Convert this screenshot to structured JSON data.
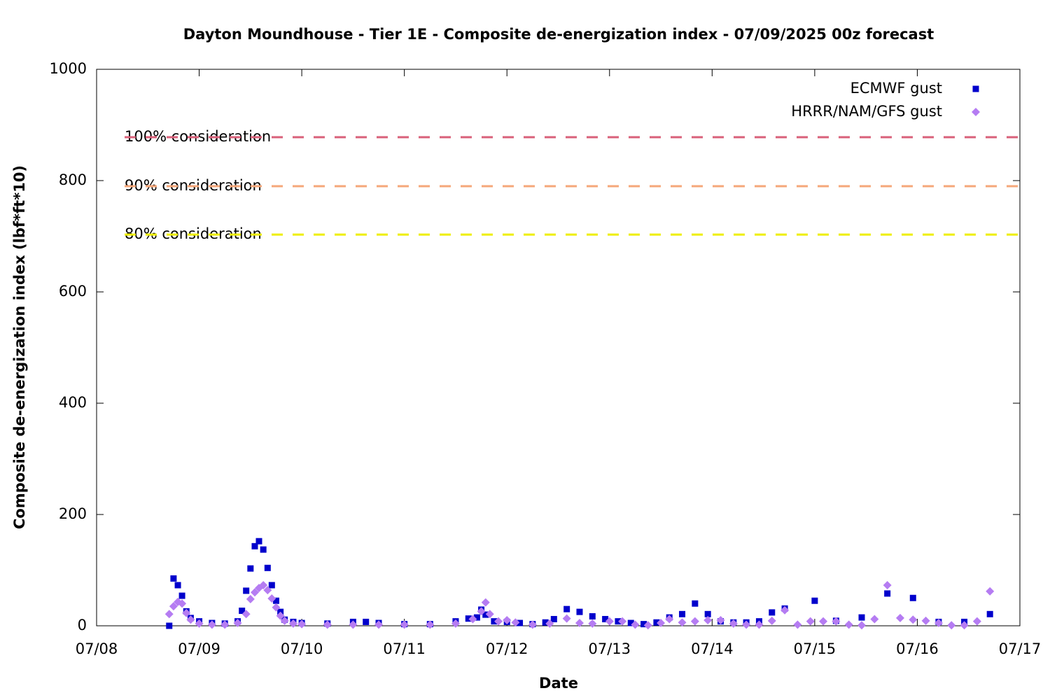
{
  "chart_data": {
    "type": "scatter",
    "title": "Dayton Moundhouse - Tier 1E - Composite de-energization index - 07/09/2025 00z forecast",
    "xlabel": "Date",
    "ylabel": "Composite de-energization index (lbf*ft*10)",
    "xlim": [
      8,
      17
    ],
    "xticks": [
      {
        "value": 8,
        "label": "07/08"
      },
      {
        "value": 9,
        "label": "07/09"
      },
      {
        "value": 10,
        "label": "07/10"
      },
      {
        "value": 11,
        "label": "07/11"
      },
      {
        "value": 12,
        "label": "07/12"
      },
      {
        "value": 13,
        "label": "07/13"
      },
      {
        "value": 14,
        "label": "07/14"
      },
      {
        "value": 15,
        "label": "07/15"
      },
      {
        "value": 16,
        "label": "07/16"
      },
      {
        "value": 17,
        "label": "07/17"
      }
    ],
    "ylim": [
      0,
      1000
    ],
    "yticks": [
      0,
      200,
      400,
      600,
      800,
      1000
    ],
    "legend": "top-right",
    "reference_lines": [
      {
        "label": "100% consideration",
        "value": 878,
        "color": "#d9607a"
      },
      {
        "label": "90% consideration",
        "value": 790,
        "color": "#f5a77a"
      },
      {
        "label": "80% consideration",
        "value": 703,
        "color": "#eeee00"
      }
    ],
    "series": [
      {
        "name": "ECMWF gust",
        "color": "#0000cc",
        "marker": "square",
        "x": [
          8.708,
          8.75,
          8.792,
          8.833,
          8.875,
          8.917,
          9.0,
          9.125,
          9.25,
          9.375,
          9.417,
          9.458,
          9.5,
          9.542,
          9.583,
          9.625,
          9.667,
          9.708,
          9.75,
          9.792,
          9.833,
          9.917,
          10.0,
          10.25,
          10.5,
          10.625,
          10.75,
          11.0,
          11.25,
          11.5,
          11.625,
          11.708,
          11.75,
          11.792,
          11.875,
          12.0,
          12.125,
          12.25,
          12.375,
          12.458,
          12.583,
          12.708,
          12.833,
          12.958,
          13.083,
          13.208,
          13.333,
          13.458,
          13.583,
          13.708,
          13.833,
          13.958,
          14.083,
          14.208,
          14.333,
          14.458,
          14.583,
          14.708,
          15.0,
          15.208,
          15.458,
          15.708,
          15.958,
          16.208,
          16.458,
          16.708
        ],
        "values": [
          0,
          85,
          73,
          54,
          26,
          14,
          8,
          5,
          4,
          8,
          27,
          63,
          103,
          143,
          152,
          137,
          104,
          73,
          45,
          25,
          11,
          7,
          5,
          4,
          7,
          7,
          5,
          3,
          3,
          8,
          13,
          15,
          29,
          20,
          8,
          7,
          5,
          3,
          6,
          12,
          30,
          25,
          17,
          12,
          8,
          5,
          3,
          6,
          15,
          21,
          40,
          21,
          8,
          6,
          6,
          8,
          24,
          31,
          45,
          9,
          15,
          58,
          50,
          7,
          7,
          21
        ]
      },
      {
        "name": "HRRR/NAM/GFS gust",
        "color": "#b57cf2",
        "marker": "diamond",
        "x": [
          8.708,
          8.75,
          8.792,
          8.833,
          8.875,
          8.917,
          9.0,
          9.125,
          9.25,
          9.375,
          9.458,
          9.5,
          9.542,
          9.583,
          9.625,
          9.667,
          9.708,
          9.75,
          9.792,
          9.833,
          9.917,
          10.0,
          10.25,
          10.5,
          10.75,
          11.0,
          11.25,
          11.5,
          11.667,
          11.75,
          11.792,
          11.833,
          11.917,
          12.0,
          12.083,
          12.25,
          12.417,
          12.583,
          12.708,
          12.833,
          13.0,
          13.125,
          13.25,
          13.375,
          13.5,
          13.583,
          13.708,
          13.833,
          13.958,
          14.083,
          14.208,
          14.333,
          14.458,
          14.583,
          14.708,
          14.833,
          14.958,
          15.083,
          15.208,
          15.333,
          15.458,
          15.583,
          15.708,
          15.833,
          15.958,
          16.083,
          16.208,
          16.333,
          16.458,
          16.583,
          16.708
        ],
        "values": [
          21,
          35,
          43,
          40,
          23,
          11,
          4,
          2,
          2,
          5,
          21,
          48,
          60,
          68,
          73,
          64,
          49,
          33,
          18,
          9,
          4,
          3,
          2,
          2,
          2,
          2,
          2,
          4,
          12,
          26,
          42,
          21,
          8,
          10,
          6,
          2,
          4,
          13,
          5,
          4,
          8,
          8,
          2,
          1,
          5,
          12,
          6,
          8,
          10,
          10,
          4,
          2,
          2,
          9,
          28,
          2,
          8,
          8,
          8,
          2,
          1,
          12,
          73,
          14,
          11,
          9,
          5,
          1,
          1,
          8,
          62
        ]
      }
    ]
  }
}
